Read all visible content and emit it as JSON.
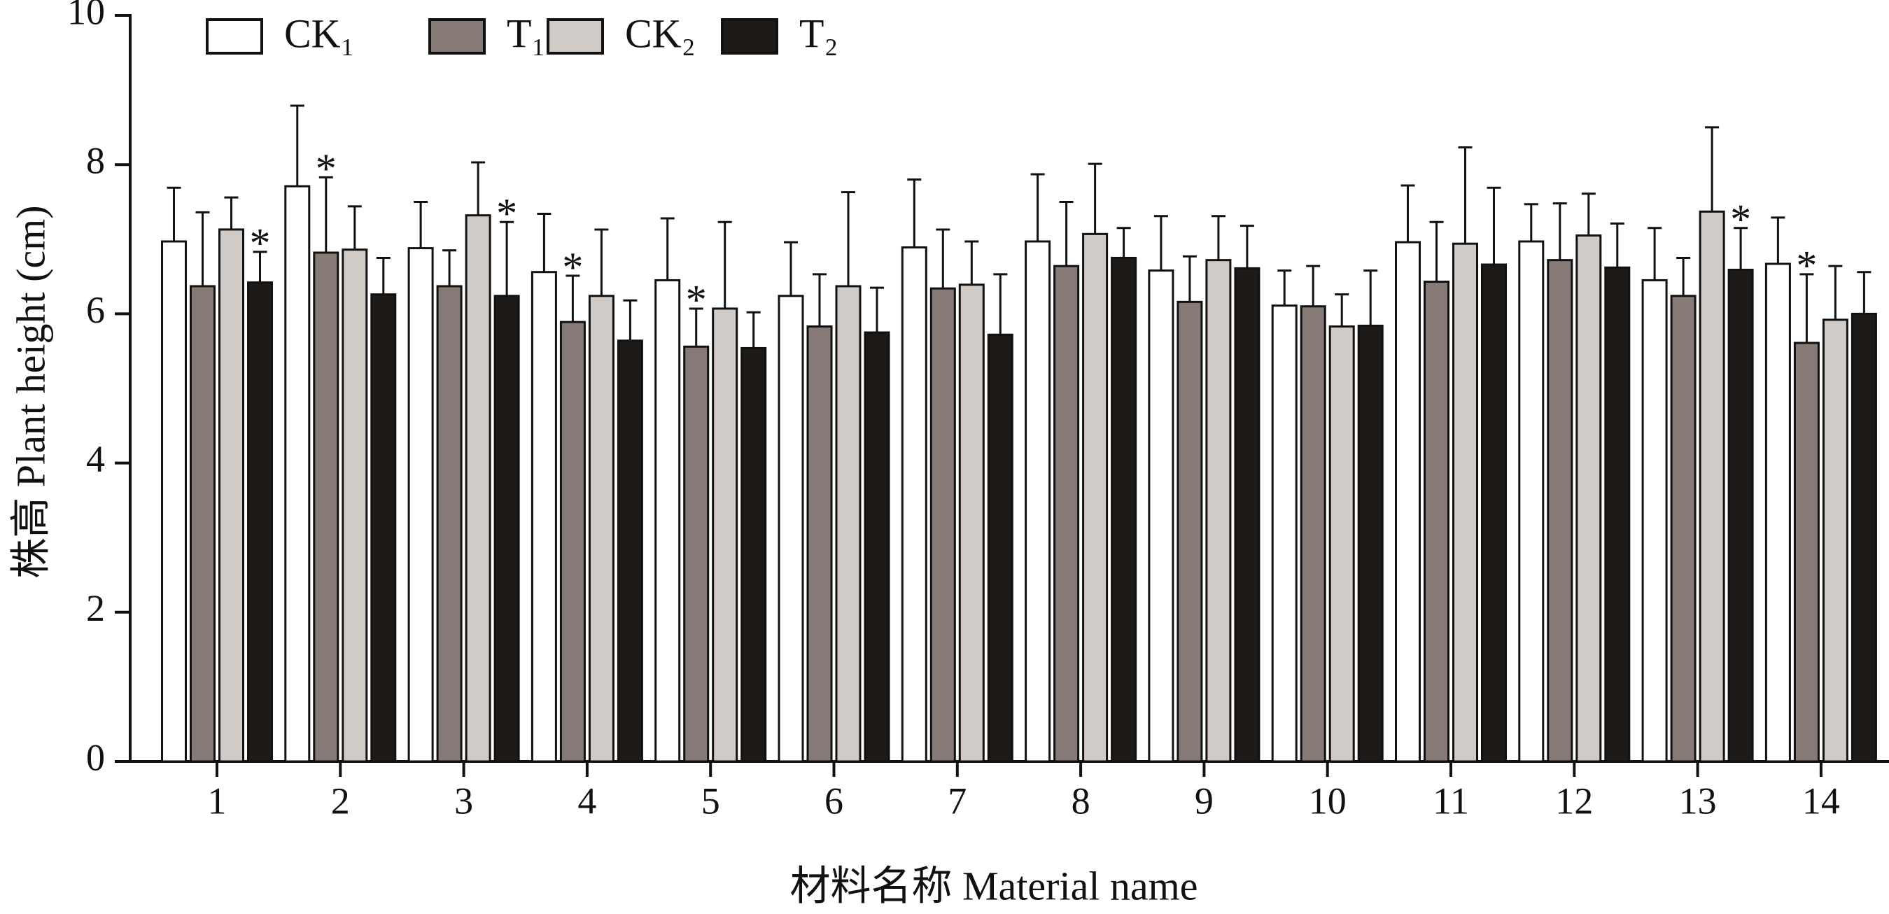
{
  "chart_data": {
    "type": "bar",
    "y_label": "株高 Plant height (cm)",
    "x_label": "材料名称 Material name",
    "categories": [
      "1",
      "2",
      "3",
      "4",
      "5",
      "6",
      "7",
      "8",
      "9",
      "10",
      "11",
      "12",
      "13",
      "14"
    ],
    "series": [
      {
        "name": "CK₁",
        "color": "#ffffff",
        "values": [
          6.97,
          7.71,
          6.88,
          6.56,
          6.45,
          6.24,
          6.89,
          6.97,
          6.58,
          6.11,
          6.96,
          6.97,
          6.45,
          6.67
        ],
        "errors": [
          0.72,
          1.08,
          0.62,
          0.78,
          0.83,
          0.72,
          0.91,
          0.9,
          0.73,
          0.47,
          0.76,
          0.5,
          0.7,
          0.62
        ]
      },
      {
        "name": "T₁",
        "color": "#857a76",
        "values": [
          6.37,
          6.82,
          6.37,
          5.89,
          5.56,
          5.83,
          6.34,
          6.64,
          6.16,
          6.1,
          6.43,
          6.72,
          6.24,
          5.61
        ],
        "errors": [
          0.99,
          1.01,
          0.48,
          0.62,
          0.51,
          0.7,
          0.79,
          0.86,
          0.61,
          0.54,
          0.8,
          0.76,
          0.51,
          0.92
        ]
      },
      {
        "name": "CK₂",
        "color": "#d1cbc7",
        "values": [
          7.13,
          6.86,
          7.32,
          6.24,
          6.07,
          6.37,
          6.39,
          7.07,
          6.72,
          5.83,
          6.94,
          7.05,
          7.37,
          5.92
        ],
        "errors": [
          0.43,
          0.58,
          0.71,
          0.89,
          1.16,
          1.26,
          0.58,
          0.94,
          0.59,
          0.43,
          1.29,
          0.56,
          1.13,
          0.72
        ]
      },
      {
        "name": "T₂",
        "color": "#1e1a17",
        "values": [
          6.42,
          6.26,
          6.24,
          5.64,
          5.54,
          5.75,
          5.72,
          6.75,
          6.61,
          5.84,
          6.66,
          6.62,
          6.59,
          6.0
        ],
        "errors": [
          0.41,
          0.49,
          0.99,
          0.54,
          0.48,
          0.6,
          0.81,
          0.4,
          0.57,
          0.74,
          1.03,
          0.59,
          0.56,
          0.56
        ]
      }
    ],
    "annotations": [
      {
        "text": "*",
        "category": "1",
        "series": "T₂"
      },
      {
        "text": "*",
        "category": "2",
        "series": "T₁"
      },
      {
        "text": "*",
        "category": "3",
        "series": "T₂"
      },
      {
        "text": "*",
        "category": "4",
        "series": "T₁"
      },
      {
        "text": "*",
        "category": "5",
        "series": "T₁"
      },
      {
        "text": "*",
        "category": "13",
        "series": "T₂"
      },
      {
        "text": "*",
        "category": "14",
        "series": "T₁"
      }
    ],
    "ylim": [
      0,
      10
    ],
    "yticks": [
      0,
      2,
      4,
      6,
      8,
      10
    ],
    "legend": "top-left"
  }
}
